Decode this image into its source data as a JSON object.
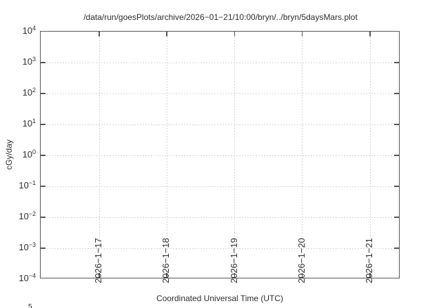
{
  "colors": {
    "background": "#ffffff",
    "text": "#2e2e2e",
    "axis": "#555555",
    "grid": "#d4d4d4"
  },
  "chart_data": {
    "type": "line",
    "title": "/data/run/goesPlots/archive/2026−01−21/10:00/bryn/../bryn/5daysMars.plot",
    "xlabel": "Coordinated Universal Time (UTC)",
    "ylabel": "cGy/day",
    "y_scale": "log10",
    "ylim": [
      0.0001,
      10000
    ],
    "y_ticks": [
      {
        "base": "10",
        "exp": "4"
      },
      {
        "base": "10",
        "exp": "3"
      },
      {
        "base": "10",
        "exp": "2"
      },
      {
        "base": "10",
        "exp": "1"
      },
      {
        "base": "10",
        "exp": "0"
      },
      {
        "base": "10",
        "exp": "−1"
      },
      {
        "base": "10",
        "exp": "−2"
      },
      {
        "base": "10",
        "exp": "−3"
      },
      {
        "base": "10",
        "exp": "−4"
      }
    ],
    "x_ticks": [
      "2026−1−17",
      "2026−1−18",
      "2026−1−19",
      "2026−1−20",
      "2026−1−21"
    ],
    "grid": "dotted",
    "legend": "none",
    "series": [],
    "plot_empty": true,
    "clipped_next_plot_exponent": "5"
  }
}
